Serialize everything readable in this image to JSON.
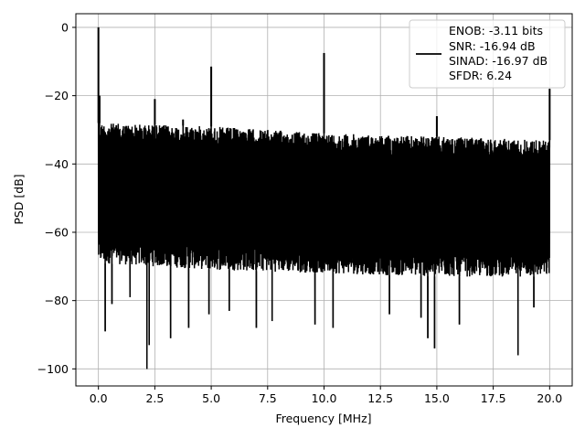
{
  "chart_data": {
    "type": "line",
    "title": "",
    "xlabel": "Frequency [MHz]",
    "ylabel": "PSD [dB]",
    "xlim": [
      -1.0,
      21.0
    ],
    "ylim": [
      -105,
      4
    ],
    "grid": true,
    "legend_placement": "top-right",
    "x_ticks": [
      0.0,
      2.5,
      5.0,
      7.5,
      10.0,
      12.5,
      15.0,
      17.5,
      20.0
    ],
    "x_tick_labels": [
      "0.0",
      "2.5",
      "5.0",
      "7.5",
      "10.0",
      "12.5",
      "15.0",
      "17.5",
      "20.0"
    ],
    "y_ticks": [
      0,
      -20,
      -40,
      -60,
      -80,
      -100
    ],
    "y_tick_labels": [
      "0",
      "−20",
      "−40",
      "−60",
      "−80",
      "−100"
    ],
    "series": [
      {
        "color": "#000000",
        "noise_band": {
          "x": [
            0.0,
            5.0,
            10.0,
            15.0,
            20.0
          ],
          "upper": [
            -28,
            -29,
            -31,
            -32,
            -33
          ],
          "lower": [
            -69,
            -71,
            -72,
            -73,
            -73
          ]
        },
        "spikes": [
          {
            "x": 0.0,
            "y": 0
          },
          {
            "x": 0.05,
            "y": -20
          },
          {
            "x": 2.5,
            "y": -21
          },
          {
            "x": 3.75,
            "y": -27
          },
          {
            "x": 5.0,
            "y": -11.5
          },
          {
            "x": 10.0,
            "y": -7.5
          },
          {
            "x": 15.0,
            "y": -26
          },
          {
            "x": 20.0,
            "y": -18
          }
        ],
        "dips": [
          {
            "x": 0.3,
            "y": -89
          },
          {
            "x": 0.6,
            "y": -81
          },
          {
            "x": 1.4,
            "y": -79
          },
          {
            "x": 2.15,
            "y": -100
          },
          {
            "x": 2.25,
            "y": -93
          },
          {
            "x": 3.2,
            "y": -91
          },
          {
            "x": 4.0,
            "y": -88
          },
          {
            "x": 4.9,
            "y": -84
          },
          {
            "x": 5.8,
            "y": -83
          },
          {
            "x": 7.0,
            "y": -88
          },
          {
            "x": 7.7,
            "y": -86
          },
          {
            "x": 9.6,
            "y": -87
          },
          {
            "x": 10.4,
            "y": -88
          },
          {
            "x": 12.9,
            "y": -84
          },
          {
            "x": 14.3,
            "y": -85
          },
          {
            "x": 14.6,
            "y": -91
          },
          {
            "x": 14.9,
            "y": -94
          },
          {
            "x": 16.0,
            "y": -87
          },
          {
            "x": 18.6,
            "y": -96
          },
          {
            "x": 19.3,
            "y": -82
          }
        ]
      }
    ],
    "legend": {
      "lines": [
        "ENOB: -3.11 bits",
        "SNR: -16.94 dB",
        "SINAD: -16.97 dB",
        "SFDR: 6.24"
      ]
    }
  }
}
